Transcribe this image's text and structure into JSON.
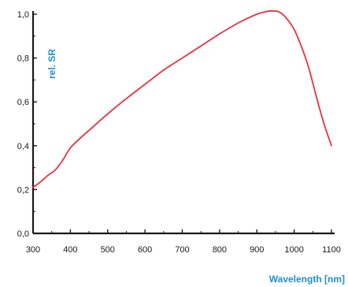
{
  "chart_data": {
    "type": "line",
    "xlabel": "Wavelength [nm]",
    "ylabel": "rel. SR",
    "xlim": [
      300,
      1100
    ],
    "ylim": [
      0.0,
      1.0
    ],
    "grid": false,
    "x_ticks": [
      300,
      400,
      500,
      600,
      700,
      800,
      900,
      1000,
      1100
    ],
    "x_tick_labels": [
      "300",
      "400",
      "500",
      "600",
      "700",
      "800",
      "900",
      "1000",
      "1100"
    ],
    "y_ticks": [
      0.0,
      0.2,
      0.4,
      0.6,
      0.8,
      1.0
    ],
    "y_tick_labels": [
      "0,0",
      "0,2",
      "0,4",
      "0,6",
      "0,8",
      "1,0"
    ],
    "series": [
      {
        "color": "#e8323c",
        "x": [
          300,
          320,
          340,
          360,
          380,
          400,
          430,
          460,
          500,
          550,
          600,
          650,
          700,
          750,
          800,
          850,
          880,
          900,
          920,
          940,
          960,
          980,
          1000,
          1020,
          1040,
          1060,
          1080,
          1100
        ],
        "y": [
          0.21,
          0.235,
          0.265,
          0.29,
          0.335,
          0.39,
          0.44,
          0.485,
          0.545,
          0.615,
          0.68,
          0.745,
          0.8,
          0.855,
          0.91,
          0.96,
          0.985,
          1.0,
          1.01,
          1.015,
          1.01,
          0.98,
          0.93,
          0.85,
          0.75,
          0.62,
          0.5,
          0.4
        ]
      }
    ]
  },
  "colors": {
    "axis_title": "#1f8fcf",
    "axis": "#1a1a1a"
  }
}
